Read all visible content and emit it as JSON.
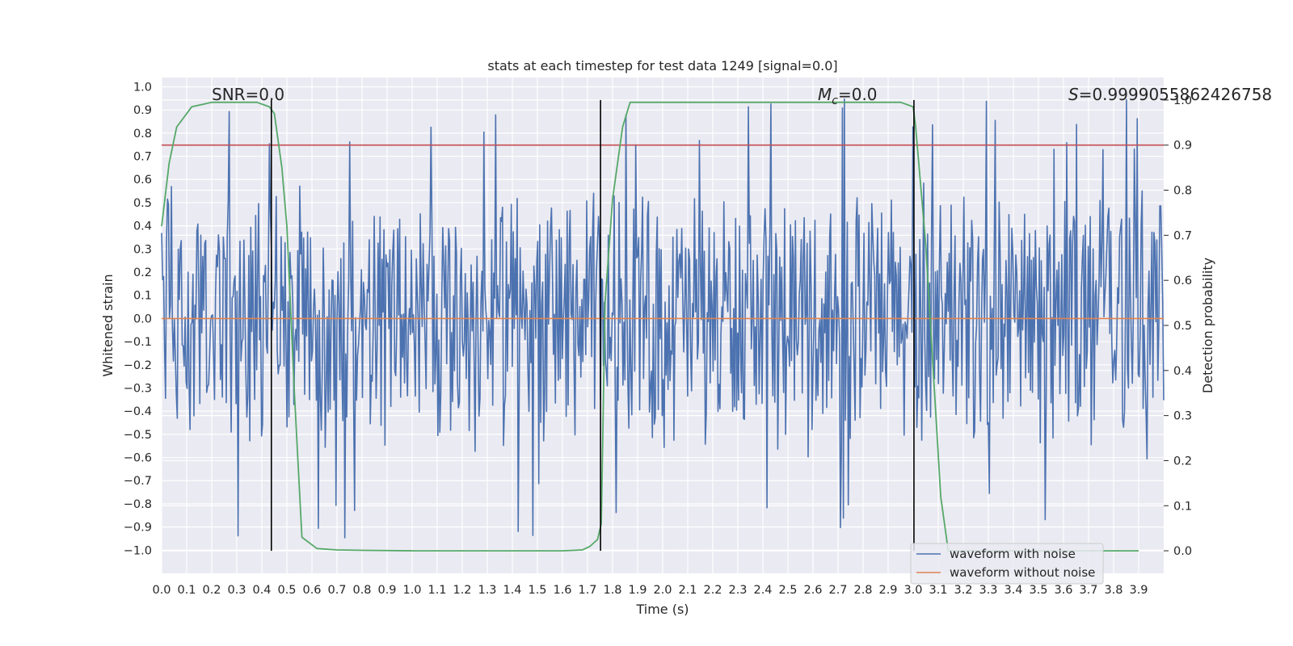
{
  "chart_data": {
    "type": "line",
    "title": "stats at each timestep for test data 1249 [signal=0.0]",
    "xlabel": "Time (s)",
    "ylabel": "Whitened strain",
    "ylabel_right": "Detection probability",
    "xlim": [
      0.0,
      4.0
    ],
    "ylim": [
      -1.1,
      1.04
    ],
    "ylim_right": [
      -0.05,
      1.05
    ],
    "x_ticks": [
      0.0,
      0.1,
      0.2,
      0.3,
      0.4,
      0.5,
      0.6,
      0.7,
      0.8,
      0.9,
      1.0,
      1.1,
      1.2,
      1.3,
      1.4,
      1.5,
      1.6,
      1.7,
      1.8,
      1.9,
      2.0,
      2.1,
      2.2,
      2.3,
      2.4,
      2.5,
      2.6,
      2.7,
      2.8,
      2.9,
      3.0,
      3.1,
      3.2,
      3.3,
      3.4,
      3.5,
      3.6,
      3.7,
      3.8,
      3.9
    ],
    "x_tick_labels": [
      "0.0",
      "0.1",
      "0.2",
      "0.3",
      "0.4",
      "0.5",
      "0.6",
      "0.7",
      "0.8",
      "0.9",
      "1.0",
      "1.1",
      "1.2",
      "1.3",
      "1.4",
      "1.5",
      "1.6",
      "1.7",
      "1.8",
      "1.9",
      "2.0",
      "2.1",
      "2.2",
      "2.3",
      "2.4",
      "2.5",
      "2.6",
      "2.7",
      "2.8",
      "2.9",
      "3.0",
      "3.1",
      "3.2",
      "3.3",
      "3.4",
      "3.5",
      "3.6",
      "3.7",
      "3.8",
      "3.9"
    ],
    "y_ticks": [
      1.0,
      0.9,
      0.8,
      0.7,
      0.6,
      0.5,
      0.4,
      0.3,
      0.2,
      0.1,
      0.0,
      -0.1,
      -0.2,
      -0.3,
      -0.4,
      -0.5,
      -0.6,
      -0.7,
      -0.8,
      -0.9,
      -1.0
    ],
    "y_tick_labels": [
      "1.0",
      "0.9",
      "0.8",
      "0.7",
      "0.6",
      "0.5",
      "0.4",
      "0.3",
      "0.2",
      "0.1",
      "0.0",
      "−0.1",
      "−0.2",
      "−0.3",
      "−0.4",
      "−0.5",
      "−0.6",
      "−0.7",
      "−0.8",
      "−0.9",
      "−1.0"
    ],
    "y_right_ticks": [
      1.0,
      0.9,
      0.8,
      0.7,
      0.6,
      0.5,
      0.4,
      0.3,
      0.2,
      0.1,
      0.0
    ],
    "y_right_tick_labels": [
      "1.0",
      "0.9",
      "0.8",
      "0.7",
      "0.6",
      "0.5",
      "0.4",
      "0.3",
      "0.2",
      "0.1",
      "0.0"
    ],
    "grid": true,
    "legend_position": "bottom-right",
    "series": [
      {
        "name": "waveform with noise",
        "axis": "left",
        "color": "#4c72b0",
        "style": "dense noise, approx. uniform in [-0.6, 0.6] with spikes to about ±0.9",
        "noise_amplitude": 0.62,
        "noise_seed": 1249,
        "n_samples": 1024
      },
      {
        "name": "waveform without noise",
        "axis": "left",
        "color": "#dd8452",
        "x": [
          0.0,
          4.0
        ],
        "y": [
          0.0,
          0.0
        ]
      },
      {
        "name": "detection probability",
        "axis": "right",
        "color": "#55a868",
        "x": [
          0.0,
          0.03,
          0.06,
          0.12,
          0.2,
          0.3,
          0.38,
          0.43,
          0.45,
          0.48,
          0.5,
          0.53,
          0.56,
          0.62,
          0.7,
          0.8,
          1.0,
          1.3,
          1.6,
          1.68,
          1.71,
          1.74,
          1.755,
          1.77,
          1.8,
          1.84,
          1.87,
          1.9,
          2.0,
          2.5,
          2.8,
          2.95,
          3.0,
          3.01,
          3.05,
          3.08,
          3.11,
          3.14,
          3.2,
          3.5,
          3.9
        ],
        "y": [
          0.72,
          0.86,
          0.94,
          0.985,
          0.995,
          0.995,
          0.995,
          0.985,
          0.97,
          0.85,
          0.72,
          0.35,
          0.03,
          0.005,
          0.002,
          0.001,
          0.0,
          0.0,
          0.0,
          0.002,
          0.01,
          0.025,
          0.06,
          0.55,
          0.78,
          0.94,
          0.995,
          0.995,
          0.995,
          0.995,
          0.995,
          0.995,
          0.985,
          0.94,
          0.68,
          0.4,
          0.12,
          0.0,
          0.0,
          0.0,
          0.0
        ]
      }
    ],
    "hlines": [
      {
        "name": "detection threshold",
        "axis": "right",
        "y": 0.9,
        "color": "#c44e52"
      }
    ],
    "vlines": [
      {
        "name": "signal-boundary",
        "x": 0.438,
        "color": "#000000"
      },
      {
        "name": "signal-boundary",
        "x": 1.752,
        "color": "#000000"
      },
      {
        "name": "signal-boundary",
        "x": 3.003,
        "color": "#000000"
      }
    ],
    "annotations": [
      {
        "name": "snr-annotation",
        "text": "SNR=0.0"
      },
      {
        "name": "chirp-mass-annotation",
        "text_main": "M",
        "text_sub": "c",
        "text_rest": "=0.0"
      },
      {
        "name": "score-annotation",
        "text_main": "S",
        "text_rest": "=0.9999055862426758"
      }
    ],
    "legend": [
      "waveform with noise",
      "waveform without noise"
    ]
  }
}
